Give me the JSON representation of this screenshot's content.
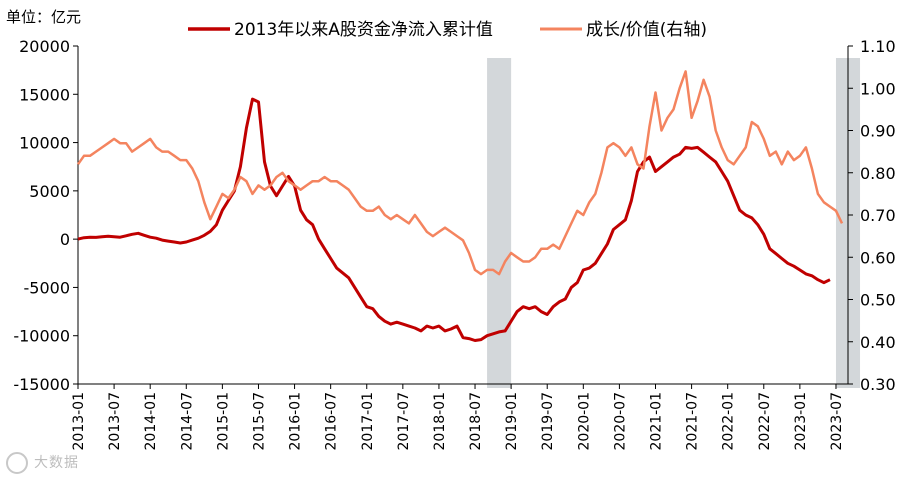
{
  "unit_label": "单位：亿元",
  "watermark": "大数据",
  "colors": {
    "net_inflow": "#c00000",
    "ratio": "#f4845f",
    "shade": "#d3d7da",
    "axis": "#000000"
  },
  "chart_data": {
    "type": "line",
    "y_left": {
      "ylim": [
        -15000,
        20000
      ],
      "ticks": [
        -15000,
        -10000,
        -5000,
        0,
        5000,
        10000,
        15000,
        20000
      ]
    },
    "y_right": {
      "ylim": [
        0.3,
        1.1
      ],
      "ticks": [
        "0.30",
        "0.40",
        "0.50",
        "0.60",
        "0.70",
        "0.80",
        "0.90",
        "1.00",
        "1.10"
      ]
    },
    "x_ticks": [
      "2013-01",
      "2013-07",
      "2014-01",
      "2014-07",
      "2015-01",
      "2015-07",
      "2016-01",
      "2016-07",
      "2017-01",
      "2017-07",
      "2018-01",
      "2018-07",
      "2019-01",
      "2019-07",
      "2020-01",
      "2020-07",
      "2021-01",
      "2021-07",
      "2022-01",
      "2022-07",
      "2023-01",
      "2023-07"
    ],
    "x_range": [
      "2013-01",
      "2023-09"
    ],
    "shaded_periods": [
      [
        "2018-09",
        "2019-01"
      ],
      [
        "2023-07",
        "2023-11"
      ]
    ],
    "series": [
      {
        "name": "2013年以来A股资金净流入累计值",
        "axis": "left",
        "start": "2013-01",
        "values": [
          0,
          150,
          200,
          180,
          250,
          300,
          250,
          200,
          350,
          500,
          600,
          400,
          200,
          100,
          -100,
          -200,
          -300,
          -400,
          -300,
          -100,
          100,
          400,
          800,
          1500,
          3000,
          4000,
          5000,
          7500,
          11500,
          14500,
          14200,
          8000,
          5500,
          4500,
          5500,
          6500,
          5500,
          3000,
          2000,
          1500,
          0,
          -1000,
          -2000,
          -3000,
          -3500,
          -4000,
          -5000,
          -6000,
          -7000,
          -7200,
          -8000,
          -8500,
          -8800,
          -8600,
          -8800,
          -9000,
          -9200,
          -9500,
          -9000,
          -9200,
          -9000,
          -9500,
          -9300,
          -9000,
          -10200,
          -10300,
          -10500,
          -10400,
          -10000,
          -9800,
          -9600,
          -9500,
          -8500,
          -7500,
          -7000,
          -7200,
          -7000,
          -7500,
          -7800,
          -7000,
          -6500,
          -6200,
          -5000,
          -4500,
          -3200,
          -3000,
          -2500,
          -1500,
          -500,
          1000,
          1500,
          2000,
          4000,
          7000,
          8000,
          8500,
          7000,
          7500,
          8000,
          8500,
          8800,
          9500,
          9400,
          9500,
          9000,
          8500,
          8000,
          7000,
          6000,
          4500,
          3000,
          2500,
          2200,
          1500,
          500,
          -1000,
          -1500,
          -2000,
          -2500,
          -2800,
          -3200,
          -3600,
          -3800,
          -4200,
          -4500,
          -4200
        ]
      },
      {
        "name": "成长/价值(右轴)",
        "axis": "right",
        "start": "2013-01",
        "values": [
          0.82,
          0.84,
          0.84,
          0.85,
          0.86,
          0.87,
          0.88,
          0.87,
          0.87,
          0.85,
          0.86,
          0.87,
          0.88,
          0.86,
          0.85,
          0.85,
          0.84,
          0.83,
          0.83,
          0.81,
          0.78,
          0.73,
          0.69,
          0.72,
          0.75,
          0.74,
          0.76,
          0.79,
          0.78,
          0.75,
          0.77,
          0.76,
          0.77,
          0.79,
          0.8,
          0.78,
          0.77,
          0.76,
          0.77,
          0.78,
          0.78,
          0.79,
          0.78,
          0.78,
          0.77,
          0.76,
          0.74,
          0.72,
          0.71,
          0.71,
          0.72,
          0.7,
          0.69,
          0.7,
          0.69,
          0.68,
          0.7,
          0.68,
          0.66,
          0.65,
          0.66,
          0.67,
          0.66,
          0.65,
          0.64,
          0.61,
          0.57,
          0.56,
          0.57,
          0.57,
          0.56,
          0.59,
          0.61,
          0.6,
          0.59,
          0.59,
          0.6,
          0.62,
          0.62,
          0.63,
          0.62,
          0.65,
          0.68,
          0.71,
          0.7,
          0.73,
          0.75,
          0.8,
          0.86,
          0.87,
          0.86,
          0.84,
          0.86,
          0.82,
          0.81,
          0.91,
          0.99,
          0.9,
          0.93,
          0.95,
          1.0,
          1.04,
          0.93,
          0.97,
          1.02,
          0.98,
          0.9,
          0.86,
          0.83,
          0.82,
          0.84,
          0.86,
          0.92,
          0.91,
          0.88,
          0.84,
          0.85,
          0.82,
          0.85,
          0.83,
          0.84,
          0.86,
          0.81,
          0.75,
          0.73,
          0.72,
          0.71,
          0.68
        ]
      }
    ]
  }
}
